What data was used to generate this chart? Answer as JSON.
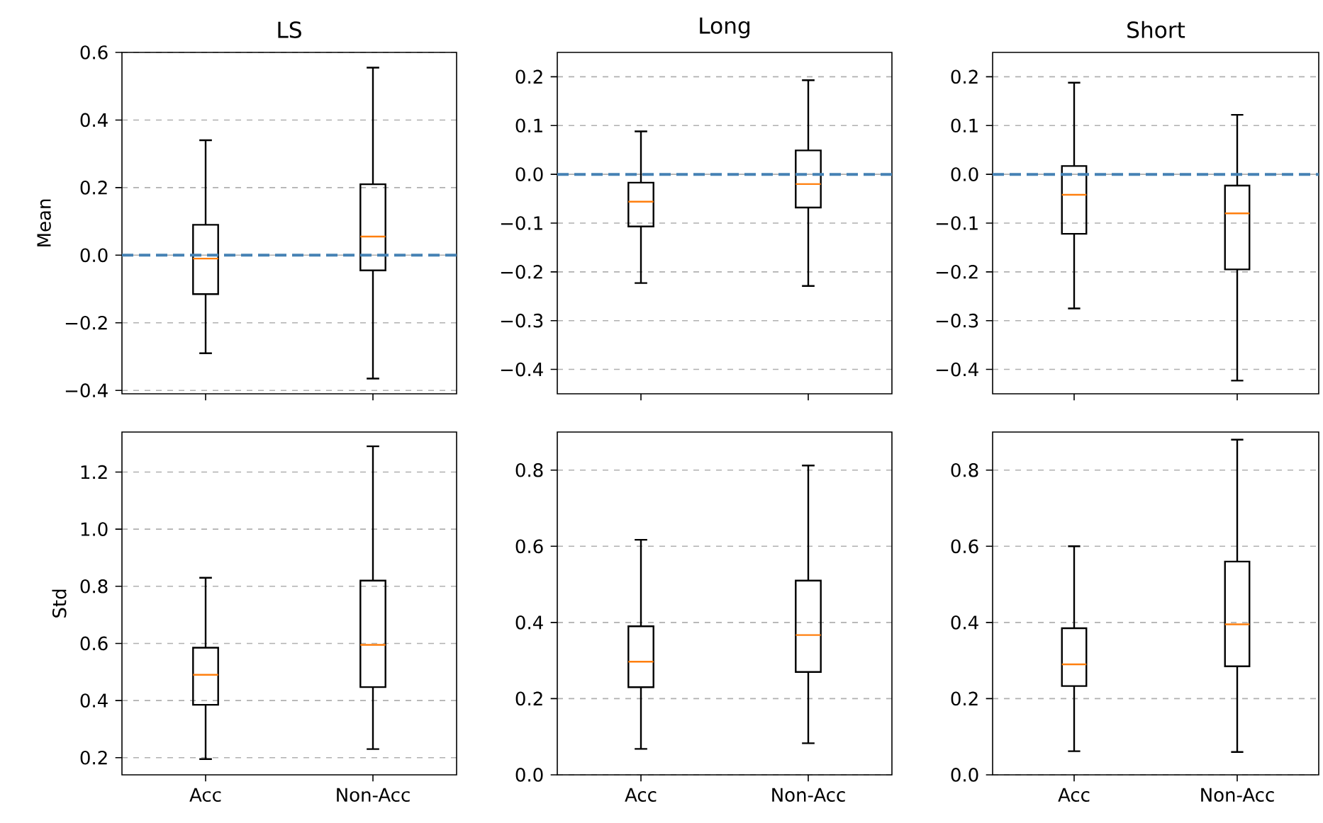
{
  "chart_data": [
    {
      "type": "box",
      "title": "LS",
      "ylabel": "Mean",
      "categories": [
        null,
        null
      ],
      "tick_labels": "y",
      "grid": "y",
      "color": "#000000",
      "boxes": [
        {
          "low": -0.29,
          "q1": -0.115,
          "median": -0.01,
          "q3": 0.09,
          "high": 0.34
        },
        {
          "low": -0.365,
          "q1": -0.045,
          "median": 0.055,
          "q3": 0.21,
          "high": 0.555
        }
      ],
      "ylim": [
        -0.41,
        0.6
      ],
      "yticks": [
        {
          "value": -0.4,
          "label": "−0.4"
        },
        {
          "value": -0.2,
          "label": "−0.2"
        },
        {
          "value": 0,
          "label": "0.0"
        },
        {
          "value": 0.2,
          "label": "0.2"
        },
        {
          "value": 0.4,
          "label": "0.4"
        },
        {
          "value": 0.6,
          "label": "0.6"
        }
      ],
      "ref_lines": [
        {
          "axis": "y",
          "value": 0,
          "color": "#4682b4",
          "line_style": "dashed"
        }
      ]
    },
    {
      "type": "box",
      "title": "Long",
      "categories": [
        null,
        null
      ],
      "tick_labels": "y",
      "grid": "y",
      "color": "#000000",
      "boxes": [
        {
          "low": -0.223,
          "q1": -0.107,
          "median": -0.056,
          "q3": -0.017,
          "high": 0.088
        },
        {
          "low": -0.229,
          "q1": -0.068,
          "median": -0.02,
          "q3": 0.049,
          "high": 0.193
        }
      ],
      "ylim": [
        -0.45,
        0.25
      ],
      "yticks": [
        {
          "value": -0.4,
          "label": "−0.4"
        },
        {
          "value": -0.3,
          "label": "−0.3"
        },
        {
          "value": -0.2,
          "label": "−0.2"
        },
        {
          "value": -0.1,
          "label": "−0.1"
        },
        {
          "value": 0,
          "label": "0.0"
        },
        {
          "value": 0.1,
          "label": "0.1"
        },
        {
          "value": 0.2,
          "label": "0.2"
        }
      ],
      "ref_lines": [
        {
          "axis": "y",
          "value": 0,
          "color": "#4682b4",
          "line_style": "dashed"
        }
      ]
    },
    {
      "type": "box",
      "title": "Short",
      "categories": [
        null,
        null
      ],
      "tick_labels": "y",
      "grid": "y",
      "color": "#000000",
      "boxes": [
        {
          "low": -0.275,
          "q1": -0.122,
          "median": -0.042,
          "q3": 0.017,
          "high": 0.188
        },
        {
          "low": -0.423,
          "q1": -0.195,
          "median": -0.08,
          "q3": -0.023,
          "high": 0.122
        }
      ],
      "ylim": [
        -0.45,
        0.25
      ],
      "yticks": [
        {
          "value": -0.4,
          "label": "−0.4"
        },
        {
          "value": -0.3,
          "label": "−0.3"
        },
        {
          "value": -0.2,
          "label": "−0.2"
        },
        {
          "value": -0.1,
          "label": "−0.1"
        },
        {
          "value": 0,
          "label": "0.0"
        },
        {
          "value": 0.1,
          "label": "0.1"
        },
        {
          "value": 0.2,
          "label": "0.2"
        }
      ],
      "ref_lines": [
        {
          "axis": "y",
          "value": 0,
          "color": "#4682b4",
          "line_style": "dashed"
        }
      ]
    },
    {
      "type": "box",
      "ylabel": "Std",
      "categories": [
        "Acc",
        "Non-Acc"
      ],
      "grid": "y",
      "color": "#000000",
      "boxes": [
        {
          "low": 0.195,
          "q1": 0.385,
          "median": 0.49,
          "q3": 0.585,
          "high": 0.83
        },
        {
          "low": 0.23,
          "q1": 0.447,
          "median": 0.595,
          "q3": 0.82,
          "high": 1.29
        }
      ],
      "ylim": [
        0.14,
        1.34
      ],
      "yticks": [
        {
          "value": 0.2,
          "label": "0.2"
        },
        {
          "value": 0.4,
          "label": "0.4"
        },
        {
          "value": 0.6,
          "label": "0.6"
        },
        {
          "value": 0.8,
          "label": "0.8"
        },
        {
          "value": 1.0,
          "label": "1.0"
        },
        {
          "value": 1.2,
          "label": "1.2"
        }
      ]
    },
    {
      "type": "box",
      "categories": [
        "Acc",
        "Non-Acc"
      ],
      "grid": "y",
      "color": "#000000",
      "boxes": [
        {
          "low": 0.068,
          "q1": 0.23,
          "median": 0.297,
          "q3": 0.39,
          "high": 0.617
        },
        {
          "low": 0.083,
          "q1": 0.27,
          "median": 0.367,
          "q3": 0.51,
          "high": 0.812
        }
      ],
      "ylim": [
        0,
        0.9
      ],
      "yticks": [
        {
          "value": 0,
          "label": "0.0"
        },
        {
          "value": 0.2,
          "label": "0.2"
        },
        {
          "value": 0.4,
          "label": "0.4"
        },
        {
          "value": 0.6,
          "label": "0.6"
        },
        {
          "value": 0.8,
          "label": "0.8"
        }
      ]
    },
    {
      "type": "box",
      "categories": [
        "Acc",
        "Non-Acc"
      ],
      "grid": "y",
      "color": "#000000",
      "boxes": [
        {
          "low": 0.062,
          "q1": 0.233,
          "median": 0.29,
          "q3": 0.385,
          "high": 0.6
        },
        {
          "low": 0.06,
          "q1": 0.285,
          "median": 0.395,
          "q3": 0.56,
          "high": 0.88
        }
      ],
      "ylim": [
        0,
        0.9
      ],
      "yticks": [
        {
          "value": 0,
          "label": "0.0"
        },
        {
          "value": 0.2,
          "label": "0.2"
        },
        {
          "value": 0.4,
          "label": "0.4"
        },
        {
          "value": 0.6,
          "label": "0.6"
        },
        {
          "value": 0.8,
          "label": "0.8"
        }
      ]
    }
  ]
}
